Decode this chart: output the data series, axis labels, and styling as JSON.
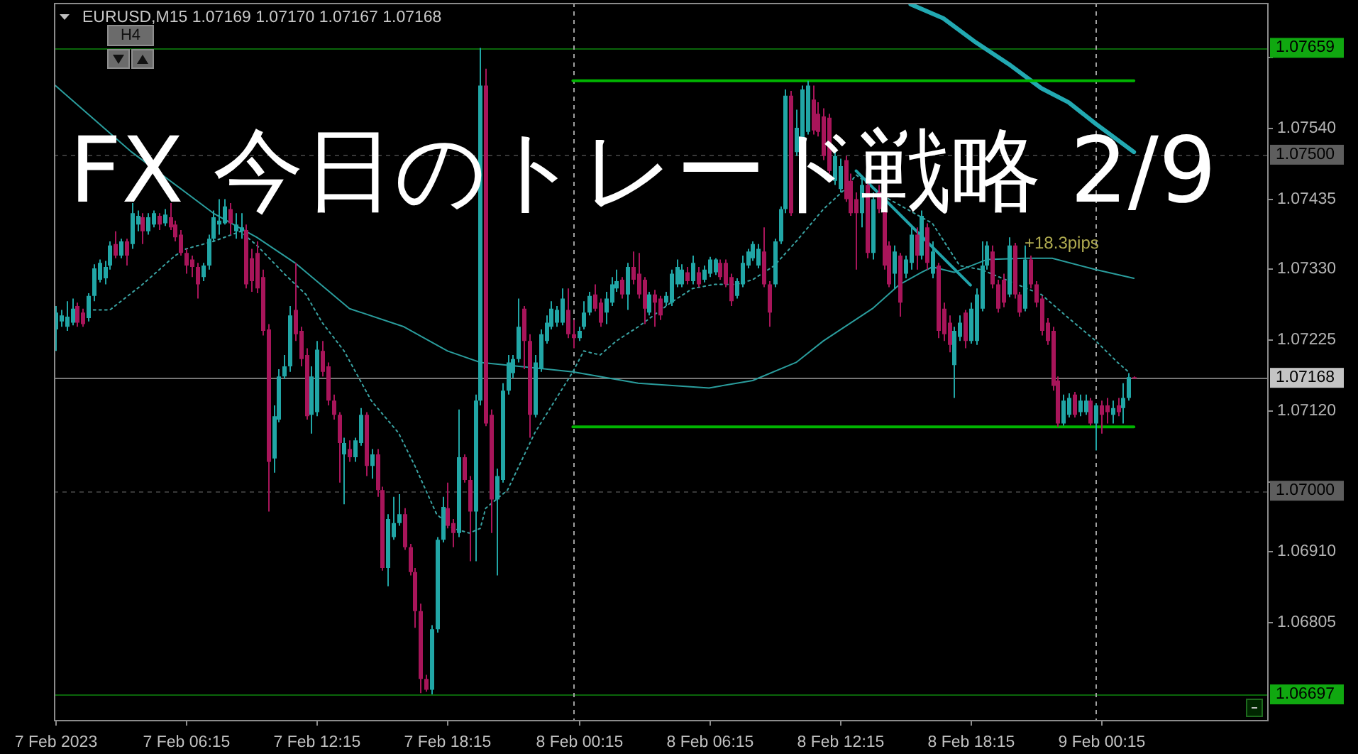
{
  "chart_data": {
    "type": "candlestick",
    "title": "FX 今日のトレード戦略 2/9",
    "subtitle": "EURUSD,M15 1.07169 1.07170 1.07167 1.07168",
    "annotations": [
      "H4",
      "+18.3pips"
    ],
    "x": [
      "2023-02-07T00:15",
      "2023-02-07T00:30",
      "2023-02-07T00:45",
      "2023-02-07T01:00",
      "2023-02-07T01:15",
      "2023-02-07T01:30",
      "2023-02-07T01:45",
      "2023-02-07T02:00",
      "2023-02-07T02:15",
      "2023-02-07T02:30",
      "2023-02-07T02:45",
      "2023-02-07T03:00",
      "2023-02-07T03:15",
      "2023-02-07T03:30",
      "2023-02-07T03:45",
      "2023-02-07T04:00",
      "2023-02-07T04:15",
      "2023-02-07T04:30",
      "2023-02-07T04:45",
      "2023-02-07T05:00",
      "2023-02-07T05:15",
      "2023-02-07T05:30",
      "2023-02-07T05:45",
      "2023-02-07T06:00",
      "2023-02-07T06:15",
      "2023-02-07T06:30",
      "2023-02-07T06:45",
      "2023-02-07T07:00",
      "2023-02-07T07:15",
      "2023-02-07T07:30",
      "2023-02-07T07:45",
      "2023-02-07T08:00",
      "2023-02-07T08:15",
      "2023-02-07T08:30",
      "2023-02-07T08:45",
      "2023-02-07T09:00",
      "2023-02-07T09:15",
      "2023-02-07T09:30",
      "2023-02-07T09:45",
      "2023-02-07T10:00",
      "2023-02-07T10:15",
      "2023-02-07T10:30",
      "2023-02-07T10:45",
      "2023-02-07T11:00",
      "2023-02-07T11:15",
      "2023-02-07T11:30",
      "2023-02-07T11:45",
      "2023-02-07T12:00",
      "2023-02-07T12:15",
      "2023-02-07T12:30",
      "2023-02-07T12:45",
      "2023-02-07T13:00",
      "2023-02-07T13:15",
      "2023-02-07T13:30",
      "2023-02-07T13:45",
      "2023-02-07T14:00",
      "2023-02-07T14:15",
      "2023-02-07T14:30",
      "2023-02-07T14:45",
      "2023-02-07T15:00",
      "2023-02-07T15:15",
      "2023-02-07T15:30",
      "2023-02-07T15:45",
      "2023-02-07T16:00",
      "2023-02-07T16:15",
      "2023-02-07T16:30",
      "2023-02-07T16:45",
      "2023-02-07T17:00",
      "2023-02-07T17:15",
      "2023-02-07T17:30",
      "2023-02-07T17:45",
      "2023-02-07T18:00",
      "2023-02-07T18:15",
      "2023-02-07T18:30",
      "2023-02-07T18:45",
      "2023-02-07T19:00",
      "2023-02-07T19:15",
      "2023-02-07T19:30",
      "2023-02-07T19:45",
      "2023-02-07T20:00",
      "2023-02-07T20:15",
      "2023-02-07T20:30",
      "2023-02-07T20:45",
      "2023-02-07T21:00",
      "2023-02-07T21:15",
      "2023-02-07T21:30",
      "2023-02-07T21:45",
      "2023-02-07T22:00",
      "2023-02-07T22:15",
      "2023-02-07T22:30",
      "2023-02-07T22:45",
      "2023-02-07T23:00",
      "2023-02-07T23:15",
      "2023-02-07T23:30",
      "2023-02-07T23:45",
      "2023-02-08T00:00",
      "2023-02-08T00:15",
      "2023-02-08T00:30",
      "2023-02-08T00:45",
      "2023-02-08T01:00",
      "2023-02-08T01:15",
      "2023-02-08T01:30",
      "2023-02-08T01:45",
      "2023-02-08T02:00",
      "2023-02-08T02:15",
      "2023-02-08T02:30",
      "2023-02-08T02:45",
      "2023-02-08T03:00",
      "2023-02-08T03:15",
      "2023-02-08T03:30",
      "2023-02-08T03:45",
      "2023-02-08T04:00",
      "2023-02-08T04:15",
      "2023-02-08T04:30",
      "2023-02-08T04:45",
      "2023-02-08T05:00",
      "2023-02-08T05:15",
      "2023-02-08T05:30",
      "2023-02-08T05:45",
      "2023-02-08T06:00",
      "2023-02-08T06:15",
      "2023-02-08T06:30",
      "2023-02-08T06:45",
      "2023-02-08T07:00",
      "2023-02-08T07:15",
      "2023-02-08T07:30",
      "2023-02-08T07:45",
      "2023-02-08T08:00",
      "2023-02-08T08:15",
      "2023-02-08T08:30",
      "2023-02-08T08:45",
      "2023-02-08T09:00",
      "2023-02-08T09:15",
      "2023-02-08T09:30",
      "2023-02-08T09:45",
      "2023-02-08T10:00",
      "2023-02-08T10:15",
      "2023-02-08T10:30",
      "2023-02-08T10:45",
      "2023-02-08T11:00",
      "2023-02-08T11:15",
      "2023-02-08T11:30",
      "2023-02-08T11:45",
      "2023-02-08T12:00",
      "2023-02-08T12:15",
      "2023-02-08T12:30",
      "2023-02-08T12:45",
      "2023-02-08T13:00",
      "2023-02-08T13:15",
      "2023-02-08T13:30",
      "2023-02-08T13:45",
      "2023-02-08T14:00",
      "2023-02-08T14:15",
      "2023-02-08T14:30",
      "2023-02-08T14:45",
      "2023-02-08T15:00",
      "2023-02-08T15:15",
      "2023-02-08T15:30",
      "2023-02-08T15:45",
      "2023-02-08T16:00",
      "2023-02-08T16:15",
      "2023-02-08T16:30",
      "2023-02-08T16:45",
      "2023-02-08T17:00",
      "2023-02-08T17:15",
      "2023-02-08T17:30",
      "2023-02-08T17:45",
      "2023-02-08T18:00",
      "2023-02-08T18:15",
      "2023-02-08T18:30",
      "2023-02-08T18:45",
      "2023-02-08T19:00",
      "2023-02-08T19:15",
      "2023-02-08T19:30",
      "2023-02-08T19:45",
      "2023-02-08T20:00",
      "2023-02-08T20:15",
      "2023-02-08T20:30",
      "2023-02-08T20:45",
      "2023-02-08T21:00",
      "2023-02-08T21:15",
      "2023-02-08T21:30",
      "2023-02-08T21:45",
      "2023-02-08T22:00",
      "2023-02-08T22:15",
      "2023-02-08T22:30",
      "2023-02-08T22:45",
      "2023-02-08T23:00",
      "2023-02-08T23:15",
      "2023-02-08T23:30",
      "2023-02-08T23:45",
      "2023-02-09T00:00",
      "2023-02-09T00:15",
      "2023-02-09T00:30",
      "2023-02-09T00:45",
      "2023-02-09T01:00",
      "2023-02-09T01:15",
      "2023-02-09T01:30",
      "2023-02-09T01:45"
    ],
    "ohlc": [
      [
        1.0724,
        1.07275,
        1.07208,
        1.07265
      ],
      [
        1.07252,
        1.07269,
        1.07244,
        1.07261
      ],
      [
        1.07244,
        1.07282,
        1.07238,
        1.07259
      ],
      [
        1.0725,
        1.07286,
        1.07246,
        1.07271
      ],
      [
        1.07275,
        1.0728,
        1.07244,
        1.0725
      ],
      [
        1.07265,
        1.07271,
        1.07244,
        1.07248
      ],
      [
        1.07257,
        1.07294,
        1.07252,
        1.0729
      ],
      [
        1.0729,
        1.07337,
        1.07282,
        1.07331
      ],
      [
        1.07314,
        1.07344,
        1.0731,
        1.07339
      ],
      [
        1.07316,
        1.07342,
        1.07307,
        1.07333
      ],
      [
        1.07335,
        1.07371,
        1.07329,
        1.07365
      ],
      [
        1.07367,
        1.07386,
        1.07346,
        1.0735
      ],
      [
        1.0735,
        1.07375,
        1.07346,
        1.07371
      ],
      [
        1.07371,
        1.07375,
        1.07335,
        1.0735
      ],
      [
        1.07367,
        1.07428,
        1.0736,
        1.07413
      ],
      [
        1.07396,
        1.07417,
        1.07386,
        1.07409
      ],
      [
        1.07407,
        1.07413,
        1.07367,
        1.07386
      ],
      [
        1.07386,
        1.07413,
        1.07381,
        1.07407
      ],
      [
        1.07396,
        1.07417,
        1.07392,
        1.07413
      ],
      [
        1.07409,
        1.07413,
        1.07388,
        1.07396
      ],
      [
        1.07398,
        1.07419,
        1.07394,
        1.07411
      ],
      [
        1.07407,
        1.07428,
        1.07388,
        1.07392
      ],
      [
        1.07396,
        1.07402,
        1.07371,
        1.07377
      ],
      [
        1.07381,
        1.07388,
        1.0735,
        1.07354
      ],
      [
        1.07354,
        1.0736,
        1.07323,
        1.07335
      ],
      [
        1.07344,
        1.0735,
        1.07318,
        1.07333
      ],
      [
        1.07333,
        1.07339,
        1.07286,
        1.07307
      ],
      [
        1.07318,
        1.07339,
        1.07312,
        1.07335
      ],
      [
        1.07335,
        1.07381,
        1.07329,
        1.07375
      ],
      [
        1.07375,
        1.07417,
        1.07371,
        1.07407
      ],
      [
        1.07396,
        1.07434,
        1.07381,
        1.07402
      ],
      [
        1.07398,
        1.07434,
        1.07396,
        1.07423
      ],
      [
        1.07419,
        1.07428,
        1.07381,
        1.07398
      ],
      [
        1.07386,
        1.07413,
        1.07375,
        1.07396
      ],
      [
        1.07386,
        1.07413,
        1.07375,
        1.07392
      ],
      [
        1.07388,
        1.07396,
        1.07301,
        1.07307
      ],
      [
        1.07346,
        1.0736,
        1.07296,
        1.07312
      ],
      [
        1.07354,
        1.07371,
        1.07294,
        1.07301
      ],
      [
        1.07318,
        1.07329,
        1.07231,
        1.07238
      ],
      [
        1.0724,
        1.07248,
        1.06969,
        1.07043
      ],
      [
        1.07048,
        1.07127,
        1.07027,
        1.07111
      ],
      [
        1.07106,
        1.07181,
        1.07102,
        1.0717
      ],
      [
        1.0717,
        1.07202,
        1.07166,
        1.07185
      ],
      [
        1.07185,
        1.07275,
        1.07177,
        1.07261
      ],
      [
        1.07269,
        1.07339,
        1.07223,
        1.07233
      ],
      [
        1.07238,
        1.07244,
        1.07185,
        1.07196
      ],
      [
        1.07202,
        1.07212,
        1.07106,
        1.07111
      ],
      [
        1.07113,
        1.07185,
        1.07085,
        1.0717
      ],
      [
        1.07117,
        1.07223,
        1.07111,
        1.0721
      ],
      [
        1.07208,
        1.07223,
        1.0717,
        1.07177
      ],
      [
        1.07185,
        1.07191,
        1.07127,
        1.07134
      ],
      [
        1.07134,
        1.07143,
        1.07106,
        1.07113
      ],
      [
        1.07113,
        1.07117,
        1.07012,
        1.07071
      ],
      [
        1.07054,
        1.07079,
        1.0698,
        1.07071
      ],
      [
        1.07062,
        1.07075,
        1.07043,
        1.0705
      ],
      [
        1.0705,
        1.07079,
        1.07043,
        1.07075
      ],
      [
        1.07071,
        1.07123,
        1.07067,
        1.07113
      ],
      [
        1.07113,
        1.07117,
        1.07022,
        1.07037
      ],
      [
        1.07037,
        1.07062,
        1.07018,
        1.07054
      ],
      [
        1.07054,
        1.07062,
        1.06991,
        1.07001
      ],
      [
        1.07001,
        1.07006,
        1.06881,
        1.06885
      ],
      [
        1.06885,
        1.06965,
        1.06858,
        1.06958
      ],
      [
        1.06931,
        1.06991,
        1.06927,
        1.06952
      ],
      [
        1.06952,
        1.06995,
        1.06948,
        1.06965
      ],
      [
        1.06965,
        1.06974,
        1.06912,
        1.06916
      ],
      [
        1.06916,
        1.06921,
        1.06874,
        1.06879
      ],
      [
        1.06879,
        1.06885,
        1.06796,
        1.06821
      ],
      [
        1.06821,
        1.06832,
        1.06699,
        1.0672
      ],
      [
        1.0672,
        1.06726,
        1.06701,
        1.06704
      ],
      [
        1.06704,
        1.068,
        1.06697,
        1.06794
      ],
      [
        1.06794,
        1.06931,
        1.06789,
        1.06927
      ],
      [
        1.06927,
        1.06991,
        1.06923,
        1.06976
      ],
      [
        1.06974,
        1.07012,
        1.06944,
        1.06948
      ],
      [
        1.06952,
        1.06958,
        1.06916,
        1.06937
      ],
      [
        1.06937,
        1.07121,
        1.06931,
        1.0705
      ],
      [
        1.0705,
        1.07054,
        1.07012,
        1.07016
      ],
      [
        1.07016,
        1.07022,
        1.06895,
        1.06969
      ],
      [
        1.06969,
        1.07143,
        1.06895,
        1.07134
      ],
      [
        1.07134,
        1.07659,
        1.07127,
        1.07603
      ],
      [
        1.07603,
        1.07628,
        1.07096,
        1.071
      ],
      [
        1.07113,
        1.07121,
        1.06937,
        1.06987
      ],
      [
        1.06987,
        1.07033,
        1.06874,
        1.07022
      ],
      [
        1.07016,
        1.0716,
        1.07012,
        1.07149
      ],
      [
        1.07149,
        1.07202,
        1.07143,
        1.07191
      ],
      [
        1.07175,
        1.07202,
        1.07168,
        1.07196
      ],
      [
        1.07196,
        1.07286,
        1.07191,
        1.07244
      ],
      [
        1.07271,
        1.07275,
        1.07181,
        1.07223
      ],
      [
        1.07223,
        1.07233,
        1.07079,
        1.07113
      ],
      [
        1.07113,
        1.07202,
        1.07109,
        1.07191
      ],
      [
        1.07181,
        1.0724,
        1.07177,
        1.07233
      ],
      [
        1.07223,
        1.07261,
        1.07219,
        1.0725
      ],
      [
        1.07244,
        1.07282,
        1.0724,
        1.07271
      ],
      [
        1.0725,
        1.07275,
        1.07244,
        1.07269
      ],
      [
        1.0725,
        1.07301,
        1.07246,
        1.07286
      ],
      [
        1.07269,
        1.07301,
        1.07227,
        1.07233
      ],
      [
        1.07233,
        1.07254,
        1.07212,
        1.07227
      ],
      [
        1.07227,
        1.07244,
        1.07223,
        1.07238
      ],
      [
        1.07244,
        1.07282,
        1.0724,
        1.07265
      ],
      [
        1.07265,
        1.07296,
        1.07261,
        1.0729
      ],
      [
        1.07292,
        1.07307,
        1.07267,
        1.07271
      ],
      [
        1.0728,
        1.07286,
        1.07244,
        1.0725
      ],
      [
        1.07265,
        1.07296,
        1.07248,
        1.07286
      ],
      [
        1.0728,
        1.07318,
        1.07275,
        1.07307
      ],
      [
        1.07301,
        1.07329,
        1.07296,
        1.07312
      ],
      [
        1.07314,
        1.07318,
        1.07286,
        1.07292
      ],
      [
        1.07292,
        1.07339,
        1.07269,
        1.07333
      ],
      [
        1.07333,
        1.07356,
        1.07307,
        1.07314
      ],
      [
        1.07323,
        1.07354,
        1.07286,
        1.07292
      ],
      [
        1.07314,
        1.07318,
        1.07248,
        1.07271
      ],
      [
        1.07265,
        1.07296,
        1.07261,
        1.07292
      ],
      [
        1.07292,
        1.07299,
        1.07244,
        1.0728
      ],
      [
        1.07286,
        1.0729,
        1.07254,
        1.07261
      ],
      [
        1.0728,
        1.07296,
        1.07275,
        1.0729
      ],
      [
        1.0728,
        1.07329,
        1.07275,
        1.07323
      ],
      [
        1.07307,
        1.07344,
        1.07303,
        1.07333
      ],
      [
        1.07307,
        1.07337,
        1.07303,
        1.07329
      ],
      [
        1.07325,
        1.07333,
        1.07307,
        1.07312
      ],
      [
        1.07312,
        1.0735,
        1.07307,
        1.07339
      ],
      [
        1.07325,
        1.07333,
        1.07303,
        1.07307
      ],
      [
        1.07314,
        1.07335,
        1.0731,
        1.07329
      ],
      [
        1.07323,
        1.07348,
        1.07318,
        1.07344
      ],
      [
        1.07325,
        1.07346,
        1.07321,
        1.07344
      ],
      [
        1.07339,
        1.07344,
        1.07314,
        1.07318
      ],
      [
        1.07339,
        1.07344,
        1.07303,
        1.07307
      ],
      [
        1.07318,
        1.07323,
        1.07275,
        1.07282
      ],
      [
        1.0729,
        1.07316,
        1.07286,
        1.07312
      ],
      [
        1.07307,
        1.0735,
        1.07303,
        1.07339
      ],
      [
        1.07335,
        1.0736,
        1.07331,
        1.07356
      ],
      [
        1.07346,
        1.07371,
        1.07342,
        1.07367
      ],
      [
        1.07335,
        1.07367,
        1.07331,
        1.0736
      ],
      [
        1.07356,
        1.07392,
        1.07303,
        1.07307
      ],
      [
        1.07307,
        1.07312,
        1.07244,
        1.07265
      ],
      [
        1.07307,
        1.07375,
        1.07303,
        1.07371
      ],
      [
        1.07371,
        1.07423,
        1.07367,
        1.07419
      ],
      [
        1.07419,
        1.07597,
        1.07413,
        1.07588
      ],
      [
        1.07588,
        1.07595,
        1.07409,
        1.07413
      ],
      [
        1.07504,
        1.07567,
        1.07498,
        1.0754
      ],
      [
        1.07519,
        1.07603,
        1.07515,
        1.07597
      ],
      [
        1.07534,
        1.0761,
        1.0753,
        1.07603
      ],
      [
        1.07582,
        1.07603,
        1.0753,
        1.07536
      ],
      [
        1.07561,
        1.07578,
        1.07527,
        1.07534
      ],
      [
        1.07557,
        1.07569,
        1.07492,
        1.07498
      ],
      [
        1.07555,
        1.07561,
        1.07472,
        1.07476
      ],
      [
        1.07461,
        1.07508,
        1.07455,
        1.07498
      ],
      [
        1.07449,
        1.07494,
        1.07444,
        1.07483
      ],
      [
        1.07492,
        1.07498,
        1.0743,
        1.07434
      ],
      [
        1.07461,
        1.07472,
        1.07409,
        1.07413
      ],
      [
        1.07434,
        1.07444,
        1.07329,
        1.07413
      ],
      [
        1.07413,
        1.07466,
        1.07392,
        1.07455
      ],
      [
        1.07455,
        1.07461,
        1.07346,
        1.07354
      ],
      [
        1.07354,
        1.07444,
        1.07344,
        1.07434
      ],
      [
        1.07444,
        1.07455,
        1.07413,
        1.07419
      ],
      [
        1.07434,
        1.07438,
        1.07329,
        1.07335
      ],
      [
        1.07365,
        1.07371,
        1.07303,
        1.07307
      ],
      [
        1.07323,
        1.07365,
        1.07301,
        1.07356
      ],
      [
        1.0735,
        1.07354,
        1.07259,
        1.0728
      ],
      [
        1.07323,
        1.0735,
        1.07316,
        1.07344
      ],
      [
        1.07339,
        1.07392,
        1.07329,
        1.07381
      ],
      [
        1.07381,
        1.07392,
        1.07329,
        1.0735
      ],
      [
        1.0735,
        1.07417,
        1.07344,
        1.07409
      ],
      [
        1.07392,
        1.07398,
        1.07329,
        1.07339
      ],
      [
        1.07323,
        1.07371,
        1.07316,
        1.07356
      ],
      [
        1.07335,
        1.07339,
        1.07227,
        1.07238
      ],
      [
        1.07271,
        1.0728,
        1.07223,
        1.07233
      ],
      [
        1.0725,
        1.07261,
        1.07206,
        1.07217
      ],
      [
        1.07187,
        1.07244,
        1.07138,
        1.07238
      ],
      [
        1.07229,
        1.07261,
        1.07223,
        1.0725
      ],
      [
        1.07265,
        1.07269,
        1.07212,
        1.07223
      ],
      [
        1.07223,
        1.0728,
        1.07219,
        1.07271
      ],
      [
        1.07223,
        1.07301,
        1.07217,
        1.07292
      ],
      [
        1.07271,
        1.07371,
        1.07267,
        1.07335
      ],
      [
        1.07335,
        1.07371,
        1.07329,
        1.07365
      ],
      [
        1.07356,
        1.07365,
        1.07301,
        1.07307
      ],
      [
        1.07307,
        1.07314,
        1.07265,
        1.07271
      ],
      [
        1.07314,
        1.07323,
        1.07273,
        1.0728
      ],
      [
        1.07292,
        1.07377,
        1.07288,
        1.07365
      ],
      [
        1.07365,
        1.07369,
        1.07286,
        1.07292
      ],
      [
        1.07292,
        1.07296,
        1.07259,
        1.07265
      ],
      [
        1.07271,
        1.07365,
        1.07267,
        1.07344
      ],
      [
        1.07344,
        1.0735,
        1.07301,
        1.07307
      ],
      [
        1.07307,
        1.07312,
        1.07273,
        1.0728
      ],
      [
        1.07286,
        1.0729,
        1.07231,
        1.07238
      ],
      [
        1.0725,
        1.07257,
        1.07217,
        1.07223
      ],
      [
        1.07238,
        1.07244,
        1.07149,
        1.07156
      ],
      [
        1.07164,
        1.0717,
        1.07095,
        1.071
      ],
      [
        1.071,
        1.07143,
        1.07097,
        1.07134
      ],
      [
        1.07113,
        1.07145,
        1.07109,
        1.07138
      ],
      [
        1.07143,
        1.07147,
        1.07109,
        1.07113
      ],
      [
        1.07117,
        1.07143,
        1.07111,
        1.07134
      ],
      [
        1.07117,
        1.07143,
        1.07113,
        1.07134
      ],
      [
        1.07134,
        1.07138,
        1.07097,
        1.071
      ],
      [
        1.071,
        1.0713,
        1.0706,
        1.07127
      ],
      [
        1.07127,
        1.07134,
        1.07085,
        1.07113
      ],
      [
        1.07127,
        1.07138,
        1.071,
        1.07117
      ],
      [
        1.07113,
        1.07134,
        1.071,
        1.07123
      ],
      [
        1.07127,
        1.07138,
        1.07111,
        1.07117
      ],
      [
        1.07123,
        1.0716,
        1.071,
        1.07138
      ],
      [
        1.07138,
        1.07175,
        1.07134,
        1.07169
      ],
      [
        1.07169,
        1.0717,
        1.07167,
        1.07168
      ]
    ],
    "colors": [
      "#21a6a6",
      "#21a6a6",
      "#21a6a6",
      "#21a6a6",
      "#a8155a",
      "#a8155a",
      "#21a6a6",
      "#21a6a6",
      "#21a6a6",
      "#21a6a6",
      "#21a6a6",
      "#a8155a",
      "#21a6a6",
      "#a8155a",
      "#21a6a6",
      "#21a6a6",
      "#a8155a",
      "#21a6a6",
      "#21a6a6",
      "#a8155a",
      "#21a6a6",
      "#a8155a",
      "#a8155a",
      "#a8155a",
      "#a8155a",
      "#a8155a",
      "#a8155a",
      "#21a6a6",
      "#21a6a6",
      "#21a6a6",
      "#21a6a6",
      "#21a6a6",
      "#a8155a",
      "#21a6a6",
      "#21a6a6",
      "#a8155a",
      "#a8155a",
      "#a8155a",
      "#a8155a",
      "#a8155a",
      "#21a6a6",
      "#21a6a6",
      "#21a6a6",
      "#21a6a6",
      "#a8155a",
      "#a8155a",
      "#a8155a",
      "#21a6a6",
      "#21a6a6",
      "#a8155a",
      "#a8155a",
      "#a8155a",
      "#a8155a",
      "#21a6a6",
      "#a8155a",
      "#21a6a6",
      "#21a6a6",
      "#a8155a",
      "#21a6a6",
      "#a8155a",
      "#a8155a",
      "#21a6a6",
      "#21a6a6",
      "#21a6a6",
      "#a8155a",
      "#a8155a",
      "#a8155a",
      "#a8155a",
      "#a8155a",
      "#21a6a6",
      "#21a6a6",
      "#21a6a6",
      "#a8155a",
      "#a8155a",
      "#21a6a6",
      "#a8155a",
      "#a8155a",
      "#21a6a6",
      "#21a6a6",
      "#a8155a",
      "#a8155a",
      "#21a6a6",
      "#21a6a6",
      "#21a6a6",
      "#21a6a6",
      "#21a6a6",
      "#a8155a",
      "#a8155a",
      "#21a6a6",
      "#21a6a6",
      "#21a6a6",
      "#21a6a6",
      "#21a6a6",
      "#21a6a6",
      "#a8155a",
      "#a8155a",
      "#21a6a6",
      "#21a6a6",
      "#21a6a6",
      "#a8155a",
      "#a8155a",
      "#21a6a6",
      "#21a6a6",
      "#21a6a6",
      "#a8155a",
      "#21a6a6",
      "#a8155a",
      "#a8155a",
      "#a8155a",
      "#21a6a6",
      "#a8155a",
      "#a8155a",
      "#21a6a6",
      "#21a6a6",
      "#21a6a6",
      "#21a6a6",
      "#a8155a",
      "#21a6a6",
      "#a8155a",
      "#21a6a6",
      "#21a6a6",
      "#21a6a6",
      "#a8155a",
      "#a8155a",
      "#a8155a",
      "#21a6a6",
      "#21a6a6",
      "#21a6a6",
      "#21a6a6",
      "#21a6a6",
      "#a8155a",
      "#a8155a",
      "#21a6a6",
      "#21a6a6",
      "#21a6a6",
      "#a8155a",
      "#21a6a6",
      "#21a6a6",
      "#21a6a6",
      "#a8155a",
      "#a8155a",
      "#a8155a",
      "#a8155a",
      "#21a6a6",
      "#21a6a6",
      "#a8155a",
      "#a8155a",
      "#a8155a",
      "#21a6a6",
      "#a8155a",
      "#21a6a6",
      "#a8155a",
      "#a8155a",
      "#a8155a",
      "#21a6a6",
      "#a8155a",
      "#21a6a6",
      "#21a6a6",
      "#a8155a",
      "#21a6a6",
      "#a8155a",
      "#21a6a6",
      "#a8155a",
      "#a8155a",
      "#a8155a",
      "#21a6a6",
      "#21a6a6",
      "#a8155a",
      "#21a6a6",
      "#21a6a6",
      "#21a6a6",
      "#21a6a6",
      "#a8155a",
      "#a8155a",
      "#a8155a",
      "#21a6a6",
      "#a8155a",
      "#a8155a",
      "#21a6a6",
      "#a8155a",
      "#a8155a",
      "#a8155a",
      "#a8155a",
      "#a8155a",
      "#a8155a",
      "#21a6a6",
      "#21a6a6",
      "#a8155a",
      "#21a6a6",
      "#21a6a6",
      "#a8155a",
      "#21a6a6",
      "#a8155a",
      "#a8155a",
      "#21a6a6",
      "#a8155a",
      "#21a6a6",
      "#21a6a6",
      "#a8155a"
    ],
    "series": [
      {
        "type": "line",
        "color": "#3aa3a3",
        "line_style": "dotted",
        "x": [
          "2023-02-07T02:00",
          "2023-02-07T02:45",
          "2023-02-07T04:15",
          "2023-02-07T05:45",
          "2023-02-07T06:15",
          "2023-02-07T07:30",
          "2023-02-07T08:45",
          "2023-02-07T09:30",
          "2023-02-07T10:45",
          "2023-02-07T11:45",
          "2023-02-07T12:30",
          "2023-02-07T13:30",
          "2023-02-07T14:45",
          "2023-02-07T16:00",
          "2023-02-07T16:45",
          "2023-02-07T17:45",
          "2023-02-07T18:30",
          "2023-02-07T19:15",
          "2023-02-07T19:45",
          "2023-02-07T20:00",
          "2023-02-07T21:00",
          "2023-02-07T22:15",
          "2023-02-08T00:00",
          "2023-02-08T00:30",
          "2023-02-08T01:15",
          "2023-02-08T02:00",
          "2023-02-08T03:00",
          "2023-02-08T04:30",
          "2023-02-08T05:30",
          "2023-02-08T06:30",
          "2023-02-08T07:30",
          "2023-02-08T08:15",
          "2023-02-08T09:15",
          "2023-02-08T10:15",
          "2023-02-08T11:30",
          "2023-02-08T12:30",
          "2023-02-08T13:00",
          "2023-02-08T14:30",
          "2023-02-08T16:30",
          "2023-02-08T17:45",
          "2023-02-08T18:45",
          "2023-02-08T21:30",
          "2023-02-08T22:45",
          "2023-02-09T00:00",
          "2023-02-09T01:00",
          "2023-02-09T01:30"
        ],
        "values": [
          1.07269,
          1.07269,
          1.07307,
          1.0735,
          1.0736,
          1.07371,
          1.07386,
          1.07365,
          1.07323,
          1.07292,
          1.0725,
          1.07208,
          1.07134,
          1.07086,
          1.07037,
          1.06965,
          1.06944,
          1.06937,
          1.06944,
          1.06974,
          1.07001,
          1.07086,
          1.07177,
          1.07208,
          1.07202,
          1.07223,
          1.07244,
          1.0728,
          1.07301,
          1.07307,
          1.07307,
          1.07314,
          1.07335,
          1.07371,
          1.07419,
          1.07449,
          1.0747,
          1.07434,
          1.07398,
          1.07335,
          1.07329,
          1.07292,
          1.07257,
          1.07223,
          1.07191,
          1.07177
        ]
      },
      {
        "type": "line",
        "color": "#2a9d9d",
        "line_style": "solid",
        "x": [
          "2023-02-07T00:15",
          "2023-02-07T03:45",
          "2023-02-07T07:30",
          "2023-02-07T09:30",
          "2023-02-07T11:15",
          "2023-02-07T13:45",
          "2023-02-07T16:15",
          "2023-02-07T18:15",
          "2023-02-07T19:45",
          "2023-02-08T00:00",
          "2023-02-08T03:00",
          "2023-02-08T06:15",
          "2023-02-08T08:15",
          "2023-02-08T10:15",
          "2023-02-08T11:30",
          "2023-02-08T13:45",
          "2023-02-08T15:00",
          "2023-02-08T16:00",
          "2023-02-08T16:30",
          "2023-02-08T17:30",
          "2023-02-08T19:00",
          "2023-02-08T20:45",
          "2023-02-08T22:00",
          "2023-02-09T00:00",
          "2023-02-09T01:45"
        ],
        "values": [
          1.07603,
          1.07504,
          1.07413,
          1.07377,
          1.07339,
          1.07271,
          1.07244,
          1.07208,
          1.07191,
          1.07177,
          1.0716,
          1.07153,
          1.07164,
          1.07191,
          1.07223,
          1.07271,
          1.07307,
          1.07325,
          1.07333,
          1.07325,
          1.07344,
          1.07346,
          1.07346,
          1.07329,
          1.07316
        ]
      },
      {
        "type": "line",
        "color": "#22a9b2",
        "line_style": "solid",
        "x": [
          "2023-02-08T15:30",
          "2023-02-08T17:00",
          "2023-02-08T18:30",
          "2023-02-08T20:00",
          "2023-02-08T21:30",
          "2023-02-08T22:45",
          "2023-02-09T00:00",
          "2023-02-09T01:45"
        ],
        "values": [
          1.07724,
          1.07703,
          1.07667,
          1.07635,
          1.07599,
          1.07578,
          1.07546,
          1.07504
        ]
      },
      {
        "type": "line",
        "color": "#20a3aa",
        "line_style": "solid",
        "x": [
          "2023-02-08T13:00",
          "2023-02-08T18:15"
        ],
        "values": [
          1.07476,
          1.07306
        ]
      },
      {
        "type": "line",
        "color": "#00b400",
        "line_style": "solid",
        "x": [
          "2023-02-08T00:00",
          "2023-02-09T01:45"
        ],
        "values": [
          1.0761,
          1.0761
        ]
      },
      {
        "type": "line",
        "color": "#00b400",
        "line_style": "solid",
        "x": [
          "2023-02-08T00:00",
          "2023-02-09T01:45"
        ],
        "values": [
          1.07095,
          1.07095
        ]
      }
    ],
    "xlim": [
      "2023-02-07T00:11",
      "2023-02-09T07:52"
    ],
    "xticks": [
      {
        "value": "2023-02-07T00:15",
        "label": "7 Feb 2023"
      },
      {
        "value": "2023-02-07T06:15",
        "label": "7 Feb 06:15"
      },
      {
        "value": "2023-02-07T12:15",
        "label": "7 Feb 12:15"
      },
      {
        "value": "2023-02-07T18:15",
        "label": "7 Feb 18:15"
      },
      {
        "value": "2023-02-08T00:15",
        "label": "8 Feb 00:15"
      },
      {
        "value": "2023-02-08T06:15",
        "label": "8 Feb 06:15"
      },
      {
        "value": "2023-02-08T12:15",
        "label": "8 Feb 12:15"
      },
      {
        "value": "2023-02-08T18:15",
        "label": "8 Feb 18:15"
      },
      {
        "value": "2023-02-09T00:15",
        "label": "9 Feb 00:15"
      }
    ],
    "ylim": [
      1.06659,
      1.07726
    ],
    "yticks": [
      {
        "value": 1.07645,
        "label": null
      },
      {
        "value": 1.0754,
        "label": "1.07540"
      },
      1.07435,
      {
        "value": 1.0733,
        "label": "1.07330"
      },
      1.07225,
      {
        "value": 1.0712,
        "label": "1.07120"
      },
      {
        "value": 1.07015,
        "label": null
      },
      {
        "value": 1.0691,
        "label": "1.06910"
      },
      1.06805
    ],
    "ref_lines": [
      {
        "axis": "y",
        "value": 1.07659,
        "label": "1.07659",
        "color": "#10a810"
      },
      {
        "axis": "y",
        "value": 1.075,
        "label": "1.07500",
        "color": "#5e5e5e",
        "line_style": "dashed"
      },
      {
        "axis": "y",
        "value": 1.07168,
        "label": "1.07168",
        "color": "#c4c4c4"
      },
      {
        "axis": "y",
        "value": 1.07,
        "label": "1.07000",
        "color": "#5e5e5e",
        "line_style": "dashed"
      },
      {
        "axis": "y",
        "value": 1.06697,
        "label": "1.06697",
        "color": "#10a810"
      },
      {
        "axis": "x",
        "value": "2023-02-08T00:00",
        "color": "#a0a0a0",
        "line_style": "dashed"
      },
      {
        "axis": "x",
        "value": "2023-02-09T00:00",
        "color": "#a0a0a0",
        "line_style": "dashed"
      }
    ]
  }
}
